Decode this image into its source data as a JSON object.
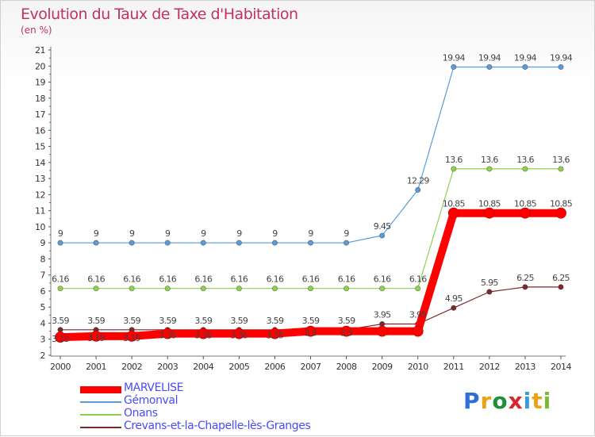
{
  "header": {
    "title": "Evolution du Taux de Taxe d'Habitation",
    "unit": "(en %)"
  },
  "logo": {
    "text": "Proxiti",
    "letter_colors": [
      "#2e6fd6",
      "#e9a21a",
      "#1e8f3c",
      "#d8262c",
      "#3a9bd8",
      "#e9a21a",
      "#7ab82c"
    ]
  },
  "chart_data": {
    "type": "line",
    "title": "Evolution du Taux de Taxe d'Habitation",
    "ylabel": "(en %)",
    "xlabel": "",
    "x": [
      2000,
      2001,
      2002,
      2003,
      2004,
      2005,
      2006,
      2007,
      2008,
      2009,
      2010,
      2011,
      2012,
      2013,
      2014
    ],
    "yticks": [
      2,
      3,
      4,
      5,
      6,
      7,
      8,
      9,
      10,
      11,
      12,
      13,
      14,
      15,
      16,
      17,
      18,
      19,
      20,
      21
    ],
    "ylim": [
      2,
      21
    ],
    "grid": false,
    "legend_position": "bottom-left",
    "series": [
      {
        "name": "MARVELISE",
        "color": "#ff0000",
        "width": 10,
        "values": [
          3.13,
          3.19,
          3.19,
          3.35,
          3.35,
          3.35,
          3.35,
          3.5,
          3.5,
          3.5,
          3.5,
          10.85,
          10.85,
          10.85,
          10.85
        ],
        "labels": [
          "3.13",
          "3.19",
          "3.19",
          "3.35",
          "3.35",
          "3.35",
          "3.35",
          "3.5",
          "3.5",
          "",
          "",
          "10.85",
          "10.85",
          "10.85",
          "10.85"
        ]
      },
      {
        "name": "Gémonval",
        "color": "#5b9bd5",
        "width": 1.2,
        "values": [
          9,
          9,
          9,
          9,
          9,
          9,
          9,
          9,
          9,
          9.45,
          12.29,
          19.94,
          19.94,
          19.94,
          19.94
        ],
        "labels": [
          "9",
          "9",
          "9",
          "9",
          "9",
          "9",
          "9",
          "9",
          "9",
          "9.45",
          "12.29",
          "19.94",
          "19.94",
          "19.94",
          "19.94"
        ]
      },
      {
        "name": "Onans",
        "color": "#8fd14f",
        "width": 1.2,
        "values": [
          6.16,
          6.16,
          6.16,
          6.16,
          6.16,
          6.16,
          6.16,
          6.16,
          6.16,
          6.16,
          6.16,
          13.6,
          13.6,
          13.6,
          13.6
        ],
        "labels": [
          "6.16",
          "6.16",
          "6.16",
          "6.16",
          "6.16",
          "6.16",
          "6.16",
          "6.16",
          "6.16",
          "6.16",
          "6.16",
          "13.6",
          "13.6",
          "13.6",
          "13.6"
        ]
      },
      {
        "name": "Crevans-et-la-Chapelle-lès-Granges",
        "color": "#7a2a2a",
        "width": 1.2,
        "values": [
          3.59,
          3.59,
          3.59,
          3.59,
          3.59,
          3.59,
          3.59,
          3.59,
          3.59,
          3.95,
          3.95,
          4.95,
          5.95,
          6.25,
          6.25
        ],
        "labels": [
          "3.59",
          "3.59",
          "3.59",
          "3.59",
          "3.59",
          "3.59",
          "3.59",
          "3.59",
          "3.59",
          "3.95",
          "3.95",
          "4.95",
          "5.95",
          "6.25",
          "6.25"
        ]
      }
    ]
  }
}
